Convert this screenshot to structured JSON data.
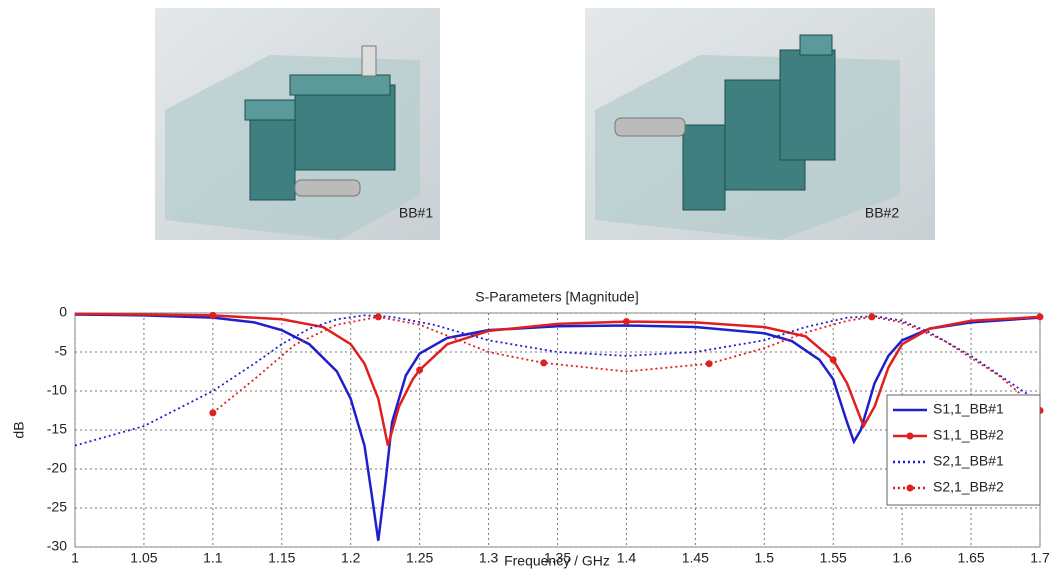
{
  "images": [
    {
      "label": "BB#1"
    },
    {
      "label": "BB#2"
    }
  ],
  "chart_data": {
    "type": "line",
    "title": "S-Parameters [Magnitude]",
    "x_label": "Frequency / GHz",
    "y_label": "dB",
    "xlim": [
      1,
      1.7
    ],
    "xticks": [
      1,
      1.05,
      1.1,
      1.15,
      1.2,
      1.25,
      1.3,
      1.35,
      1.4,
      1.45,
      1.5,
      1.55,
      1.6,
      1.65,
      1.7
    ],
    "ylim": [
      -30,
      0
    ],
    "yticks": [
      0,
      -5,
      -10,
      -15,
      -20,
      -25,
      -30
    ],
    "grid": true,
    "legend": "right",
    "series": [
      {
        "name": "S1,1_BB#1",
        "color": "#1f1fcc",
        "line_style": "solid",
        "x": [
          1.0,
          1.05,
          1.1,
          1.13,
          1.15,
          1.17,
          1.19,
          1.2,
          1.21,
          1.215,
          1.22,
          1.225,
          1.23,
          1.24,
          1.25,
          1.27,
          1.3,
          1.35,
          1.4,
          1.45,
          1.5,
          1.52,
          1.54,
          1.55,
          1.56,
          1.565,
          1.57,
          1.58,
          1.59,
          1.6,
          1.62,
          1.65,
          1.7
        ],
        "values": [
          -0.2,
          -0.3,
          -0.6,
          -1.2,
          -2.2,
          -4,
          -7.5,
          -11,
          -17,
          -23,
          -29.2,
          -22,
          -14,
          -8,
          -5.2,
          -3.2,
          -2.2,
          -1.7,
          -1.6,
          -1.8,
          -2.6,
          -3.6,
          -6,
          -8.5,
          -14,
          -16.5,
          -15,
          -9,
          -5.5,
          -3.5,
          -2,
          -1.2,
          -0.6
        ]
      },
      {
        "name": "S1,1_BB#2",
        "color": "#e01f1f",
        "line_style": "solid",
        "x": [
          1.0,
          1.1,
          1.15,
          1.18,
          1.2,
          1.21,
          1.22,
          1.227,
          1.235,
          1.245,
          1.25,
          1.27,
          1.3,
          1.35,
          1.4,
          1.45,
          1.5,
          1.53,
          1.55,
          1.56,
          1.572,
          1.58,
          1.59,
          1.6,
          1.62,
          1.65,
          1.7
        ],
        "values": [
          -0.1,
          -0.3,
          -0.8,
          -1.8,
          -4,
          -6.5,
          -11,
          -17,
          -12,
          -8.5,
          -7.3,
          -4,
          -2.3,
          -1.4,
          -1.1,
          -1.2,
          -1.8,
          -3,
          -6,
          -9,
          -14.5,
          -12,
          -7,
          -4,
          -2,
          -1,
          -0.5
        ],
        "markers": {
          "x": [
            1.1,
            1.25,
            1.4,
            1.55,
            1.7
          ],
          "values": [
            -0.3,
            -7.3,
            -1.1,
            -6,
            -0.5
          ]
        }
      },
      {
        "name": "S2,1_BB#1",
        "color": "#1f1fcc",
        "line_style": "dotted",
        "x": [
          1.0,
          1.05,
          1.1,
          1.13,
          1.15,
          1.17,
          1.19,
          1.21,
          1.23,
          1.26,
          1.3,
          1.35,
          1.4,
          1.45,
          1.5,
          1.53,
          1.56,
          1.58,
          1.6,
          1.62,
          1.65,
          1.7
        ],
        "values": [
          -17,
          -14.5,
          -10,
          -6.5,
          -4,
          -2,
          -0.8,
          -0.3,
          -0.5,
          -1.5,
          -3.5,
          -5,
          -5.5,
          -5,
          -3.5,
          -1.8,
          -0.6,
          -0.4,
          -1,
          -2.5,
          -5.5,
          -11.5
        ]
      },
      {
        "name": "S2,1_BB#2",
        "color": "#e01f1f",
        "line_style": "dotted",
        "x": [
          1.1,
          1.13,
          1.16,
          1.19,
          1.22,
          1.25,
          1.3,
          1.34,
          1.4,
          1.46,
          1.5,
          1.53,
          1.56,
          1.578,
          1.6,
          1.63,
          1.67,
          1.7
        ],
        "values": [
          -12.8,
          -8.5,
          -4,
          -1.5,
          -0.5,
          -1.5,
          -5,
          -6.4,
          -7.5,
          -6.5,
          -4.5,
          -2.5,
          -1,
          -0.5,
          -1.2,
          -3.5,
          -8,
          -12.5
        ],
        "markers": {
          "x": [
            1.1,
            1.22,
            1.34,
            1.46,
            1.578,
            1.7
          ],
          "values": [
            -12.8,
            -0.5,
            -6.4,
            -6.5,
            -0.5,
            -12.5
          ]
        }
      }
    ]
  }
}
